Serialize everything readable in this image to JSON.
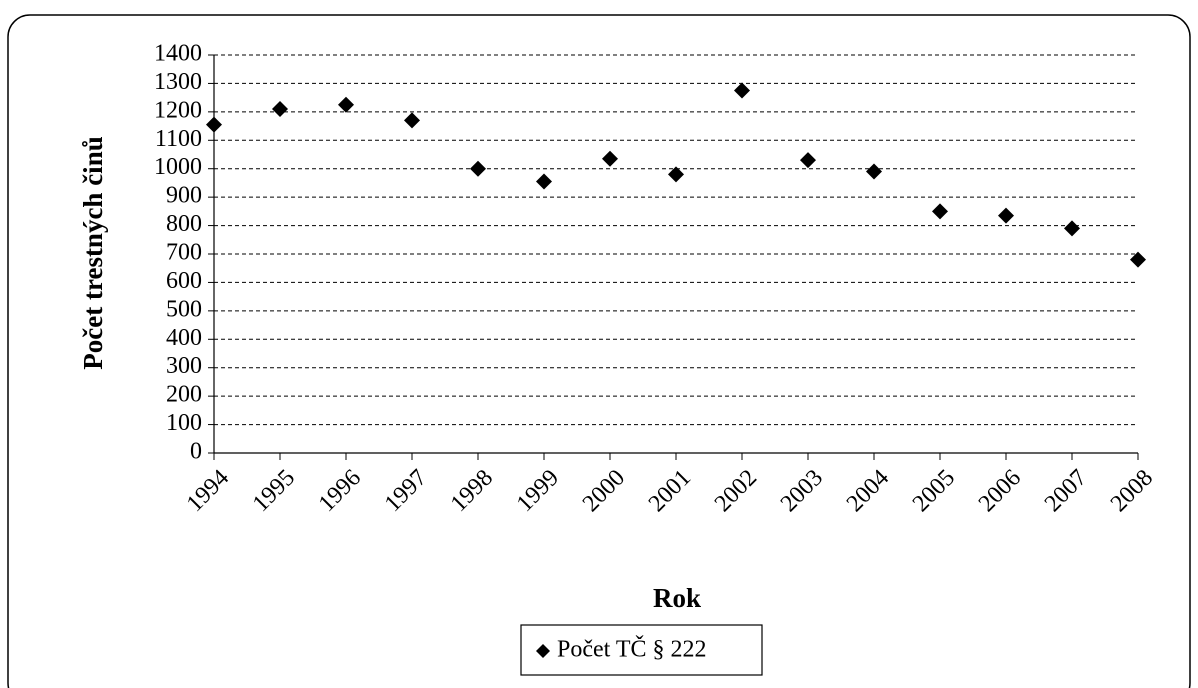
{
  "chart_data": {
    "type": "scatter",
    "x_label": "Rok",
    "y_label": "Počet trestných činů",
    "x": [
      1994,
      1995,
      1996,
      1997,
      1998,
      1999,
      2000,
      2001,
      2002,
      2003,
      2004,
      2005,
      2006,
      2007,
      2008
    ],
    "series": [
      {
        "name": "Počet TČ § 222",
        "color": "#000000",
        "values": [
          1155,
          1210,
          1225,
          1170,
          1000,
          955,
          1035,
          980,
          1275,
          1030,
          990,
          850,
          835,
          790,
          680
        ]
      }
    ],
    "xlim": [
      1994,
      2008
    ],
    "xticks": [
      1994,
      1995,
      1996,
      1997,
      1998,
      1999,
      2000,
      2001,
      2002,
      2003,
      2004,
      2005,
      2006,
      2007,
      2008
    ],
    "ylim": [
      0,
      1400
    ],
    "yticks": [
      0,
      100,
      200,
      300,
      400,
      500,
      600,
      700,
      800,
      900,
      1000,
      1100,
      1200,
      1300,
      1400
    ],
    "grid": true,
    "legend": "bottom"
  }
}
